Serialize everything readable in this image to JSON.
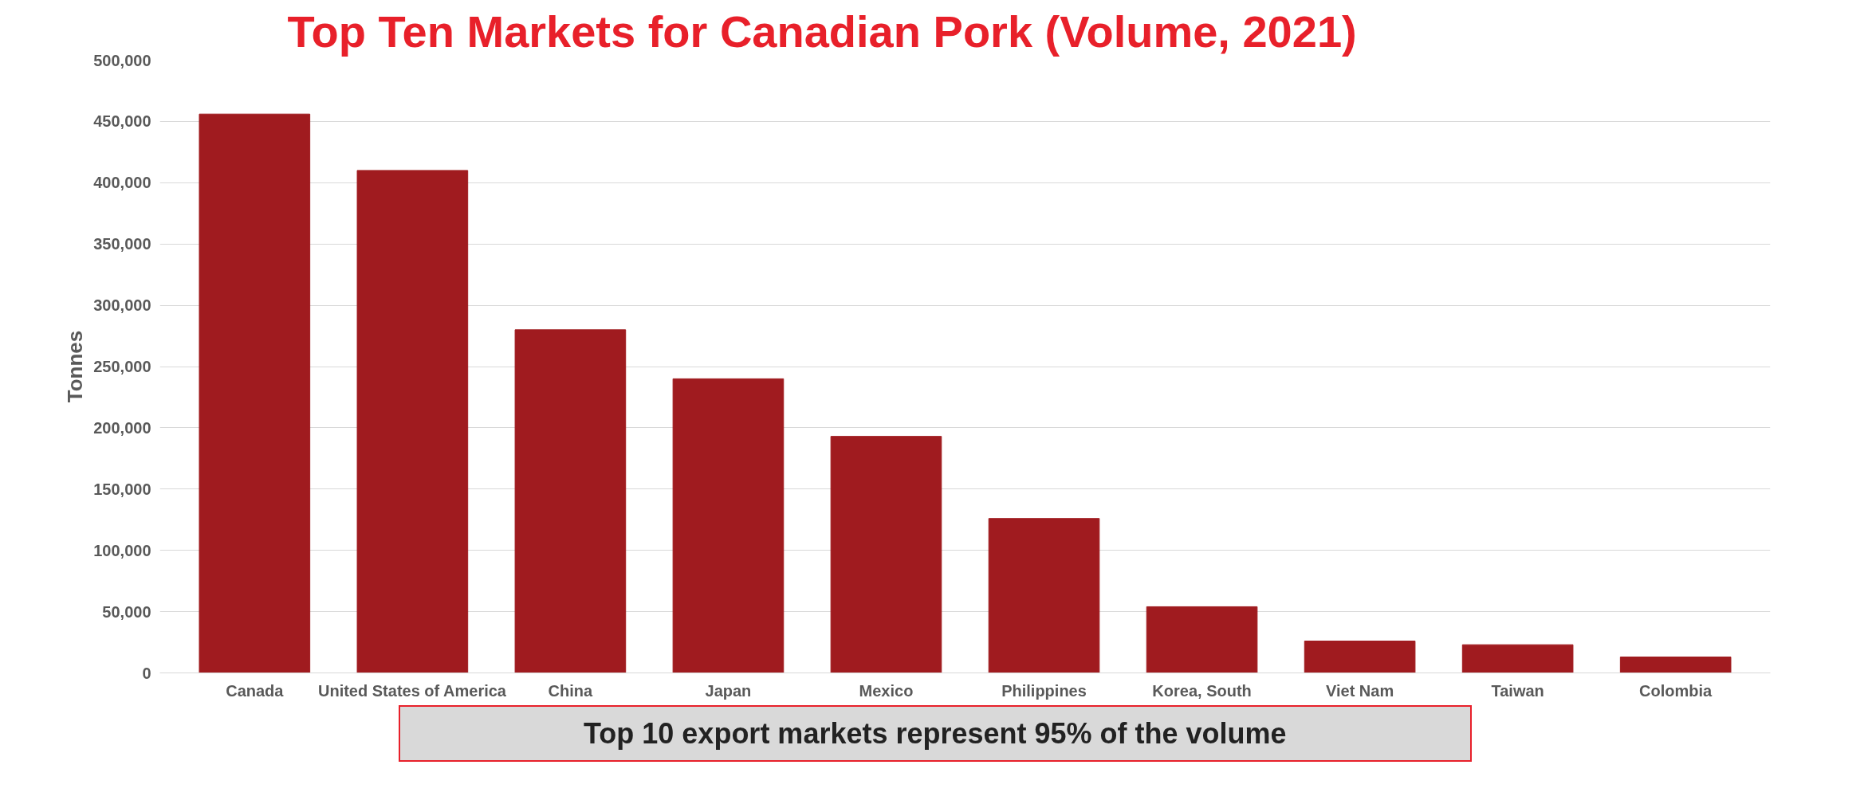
{
  "chart_data": {
    "type": "bar",
    "title": "Top Ten Markets for Canadian Pork (Volume, 2021)",
    "ylabel": "Tonnes",
    "categories": [
      "Canada",
      "United States of America",
      "China",
      "Japan",
      "Mexico",
      "Philippines",
      "Korea, South",
      "Viet Nam",
      "Taiwan",
      "Colombia"
    ],
    "values": [
      456000,
      410000,
      280000,
      240000,
      193000,
      126000,
      54000,
      26000,
      23000,
      13000
    ],
    "color": "#a01b1f",
    "ylim": [
      0,
      500000
    ],
    "yticks": [
      {
        "value": 0,
        "label": "0"
      },
      {
        "value": 50000,
        "label": "50,000"
      },
      {
        "value": 100000,
        "label": "100,000"
      },
      {
        "value": 150000,
        "label": "150,000"
      },
      {
        "value": 200000,
        "label": "200,000"
      },
      {
        "value": 250000,
        "label": "250,000"
      },
      {
        "value": 300000,
        "label": "300,000"
      },
      {
        "value": 350000,
        "label": "350,000"
      },
      {
        "value": 400000,
        "label": "400,000"
      },
      {
        "value": 450000,
        "label": "450,000"
      },
      {
        "value": 500000,
        "label": "500,000"
      }
    ],
    "grid": "y",
    "annotations": [
      "Top 10 export markets represent 95% of the volume"
    ]
  }
}
